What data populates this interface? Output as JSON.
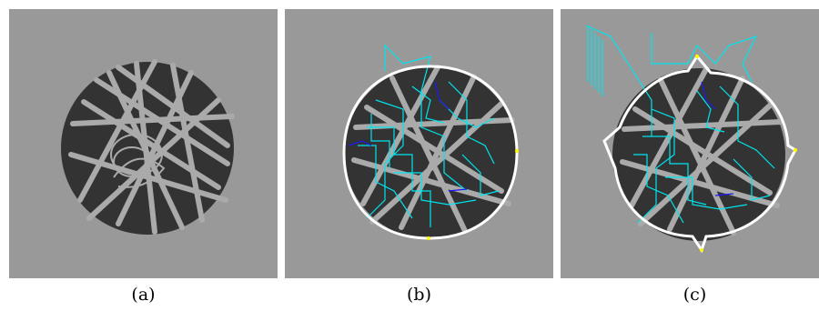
{
  "colors": {
    "background": "#999999",
    "disc": "#333333",
    "fiber": "#aaaaaa",
    "boundary": "#ffffff",
    "path_primary": "#00e5ee",
    "path_secondary": "#1a1aff",
    "marker": "#ffff00"
  },
  "panels": [
    {
      "id": "a",
      "caption": "(a)"
    },
    {
      "id": "b",
      "caption": "(b)"
    },
    {
      "id": "c",
      "caption": "(c)"
    }
  ]
}
